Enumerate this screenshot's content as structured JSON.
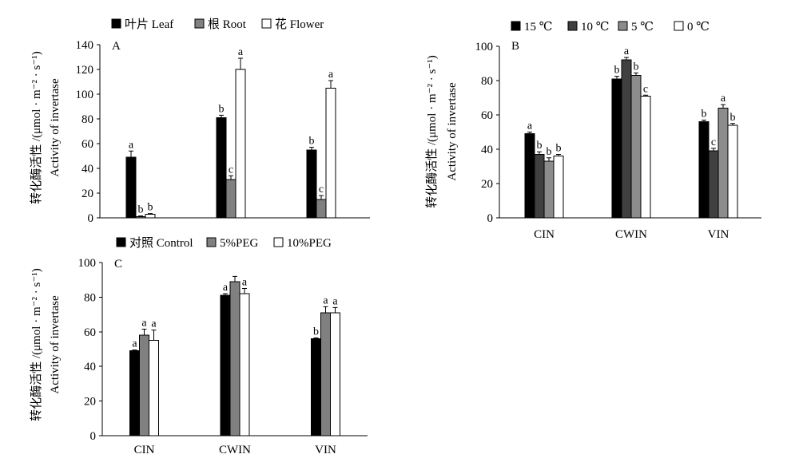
{
  "chart_data": [
    {
      "panel_label": "A",
      "type": "bar",
      "ylabel": [
        "转化酶活性 /(μmol · m⁻² · s⁻¹)",
        "Activity of invertase"
      ],
      "ylim": [
        0,
        140
      ],
      "yticks": [
        0,
        20,
        40,
        60,
        80,
        100,
        120,
        140
      ],
      "grid": false,
      "legend": "top",
      "series": [
        {
          "name": "叶片 Leaf",
          "color": "#000000",
          "values": [
            49,
            81,
            55
          ],
          "errors": [
            5,
            2,
            2
          ],
          "letters": [
            "a",
            "b",
            "b"
          ]
        },
        {
          "name": "根 Root",
          "color": "#808080",
          "values": [
            1,
            31,
            15
          ],
          "errors": [
            0.5,
            3,
            3
          ],
          "letters": [
            "b",
            "c",
            "c"
          ]
        },
        {
          "name": "花 Flower",
          "color": "#ffffff",
          "values": [
            3,
            120,
            105
          ],
          "errors": [
            0.5,
            9,
            6
          ],
          "letters": [
            "b",
            "a",
            "a"
          ]
        }
      ]
    },
    {
      "panel_label": "B",
      "type": "bar",
      "categories": [
        "CIN",
        "CWIN",
        "VIN"
      ],
      "ylabel": [
        "转化酶活性 /(μmol · m⁻² · s⁻¹)",
        "Activity of invertase"
      ],
      "ylim": [
        0,
        100
      ],
      "yticks": [
        0,
        20,
        40,
        60,
        80,
        100
      ],
      "grid": false,
      "legend": "top",
      "series": [
        {
          "name": "15 ℃",
          "color": "#000000",
          "values": [
            49,
            81,
            56
          ],
          "errors": [
            1,
            1.5,
            1
          ],
          "letters": [
            "a",
            "b",
            "b"
          ]
        },
        {
          "name": "10 ℃",
          "color": "#404040",
          "values": [
            37,
            92,
            39
          ],
          "errors": [
            1.5,
            1.5,
            1.5
          ],
          "letters": [
            "b",
            "a",
            "c"
          ]
        },
        {
          "name": "5 ℃",
          "color": "#8c8c8c",
          "values": [
            33,
            83,
            64
          ],
          "errors": [
            2,
            1.5,
            2
          ],
          "letters": [
            "b",
            "b",
            "a"
          ]
        },
        {
          "name": "0 ℃",
          "color": "#ffffff",
          "values": [
            36,
            71,
            54
          ],
          "errors": [
            1,
            0.5,
            1
          ],
          "letters": [
            "b",
            "c",
            "b"
          ]
        }
      ]
    },
    {
      "panel_label": "C",
      "type": "bar",
      "categories": [
        "CIN",
        "CWIN",
        "VIN"
      ],
      "ylabel": [
        "转化酶活性 /(μmol · m⁻² · s⁻¹)",
        "Activity of invertase"
      ],
      "ylim": [
        0,
        100
      ],
      "yticks": [
        0,
        20,
        40,
        60,
        80,
        100
      ],
      "grid": false,
      "legend": "top",
      "series": [
        {
          "name": "对照 Control",
          "color": "#000000",
          "values": [
            49,
            81,
            56
          ],
          "errors": [
            0.5,
            1,
            0.5
          ],
          "letters": [
            "a",
            "a",
            "b"
          ]
        },
        {
          "name": "5%PEG",
          "color": "#808080",
          "values": [
            58,
            89,
            71
          ],
          "errors": [
            3.5,
            3,
            3.5
          ],
          "letters": [
            "a",
            "",
            "a"
          ]
        },
        {
          "name": "10%PEG",
          "color": "#ffffff",
          "values": [
            55,
            82,
            71
          ],
          "errors": [
            6,
            3,
            3
          ],
          "letters": [
            "a",
            "a",
            "a"
          ]
        }
      ]
    }
  ]
}
